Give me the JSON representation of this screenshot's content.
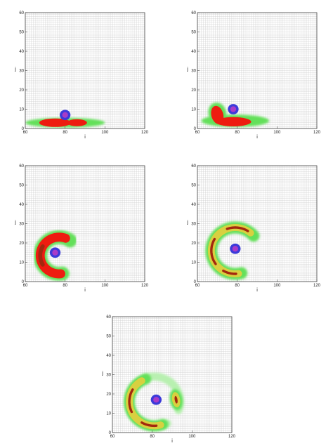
{
  "colors": {
    "grid": "#c8c8c8",
    "frame": "#444444",
    "fill_red": "#ee1c10",
    "fill_darkred": "#a3280e",
    "fill_yellow": "#d8d040",
    "fill_green": "#63e05a",
    "fill_lightgreen": "#b8f0b0",
    "marker_blue": "#3b3bd9",
    "marker_violet": "#a83cc8"
  },
  "chart_data": [
    {
      "type": "contour",
      "xlabel": "i",
      "ylabel": "j",
      "xlim": [
        60,
        120
      ],
      "ylim": [
        0,
        60
      ],
      "xticks": [
        "60",
        "80",
        "100",
        "120"
      ],
      "yticks": [
        "0",
        "10",
        "20",
        "30",
        "40",
        "50",
        "60"
      ],
      "marker_center": [
        80,
        7
      ],
      "marker_radius": 2.7,
      "features": [
        {
          "kind": "ellipse",
          "level": "green",
          "cx": 80,
          "cy": 3,
          "rx": 20,
          "ry": 2.5,
          "rot": 0
        },
        {
          "kind": "ellipse",
          "level": "red",
          "cx": 75,
          "cy": 3,
          "rx": 8,
          "ry": 2.2,
          "rot": 0
        },
        {
          "kind": "ellipse",
          "level": "red",
          "cx": 86,
          "cy": 3,
          "rx": 5,
          "ry": 1.8,
          "rot": 0
        }
      ]
    },
    {
      "type": "contour",
      "xlabel": "i",
      "ylabel": "j",
      "xlim": [
        60,
        120
      ],
      "ylim": [
        0,
        60
      ],
      "xticks": [
        "60",
        "80",
        "100",
        "120"
      ],
      "yticks": [
        "0",
        "10",
        "20",
        "30",
        "40",
        "50",
        "60"
      ],
      "marker_center": [
        78,
        10
      ],
      "marker_radius": 2.7,
      "features": [
        {
          "kind": "ellipse",
          "level": "green",
          "cx": 79,
          "cy": 4,
          "rx": 17,
          "ry": 3.2,
          "rot": 0
        },
        {
          "kind": "ellipse",
          "level": "green",
          "cx": 70,
          "cy": 8,
          "rx": 4.5,
          "ry": 5.5,
          "rot": 15
        },
        {
          "kind": "ellipse",
          "level": "red",
          "cx": 70,
          "cy": 7,
          "rx": 3,
          "ry": 4.8,
          "rot": 15
        },
        {
          "kind": "ellipse",
          "level": "red",
          "cx": 78,
          "cy": 3.5,
          "rx": 9,
          "ry": 2.4,
          "rot": 0
        }
      ]
    },
    {
      "type": "contour",
      "xlabel": "i",
      "ylabel": "j",
      "xlim": [
        60,
        120
      ],
      "ylim": [
        0,
        60
      ],
      "xticks": [
        "60",
        "80",
        "100",
        "120"
      ],
      "yticks": [
        "0",
        "10",
        "20",
        "30",
        "40",
        "50",
        "60"
      ],
      "marker_center": [
        75,
        15
      ],
      "marker_radius": 2.7,
      "features": [
        {
          "kind": "arc",
          "level": "green",
          "cx": 77,
          "cy": 13.5,
          "r": 9.5,
          "a0": 55,
          "a1": 280,
          "w": 7
        },
        {
          "kind": "arc",
          "level": "red",
          "cx": 77,
          "cy": 13.5,
          "r": 9.5,
          "a0": 70,
          "a1": 275,
          "w": 4.5
        },
        {
          "kind": "arc",
          "level": "darkred",
          "cx": 77,
          "cy": 13.5,
          "r": 9.5,
          "a0": 150,
          "a1": 210,
          "w": 2
        }
      ]
    },
    {
      "type": "contour",
      "xlabel": "i",
      "ylabel": "j",
      "xlim": [
        60,
        120
      ],
      "ylim": [
        0,
        60
      ],
      "xticks": [
        "60",
        "80",
        "100",
        "120"
      ],
      "yticks": [
        "0",
        "10",
        "20",
        "30",
        "40",
        "50",
        "60"
      ],
      "marker_center": [
        79,
        17
      ],
      "marker_radius": 2.7,
      "features": [
        {
          "kind": "arc",
          "level": "green",
          "cx": 79,
          "cy": 16,
          "r": 12,
          "a0": 40,
          "a1": 285,
          "w": 6
        },
        {
          "kind": "arc",
          "level": "yellow",
          "cx": 79,
          "cy": 16,
          "r": 12,
          "a0": 50,
          "a1": 278,
          "w": 3.5
        },
        {
          "kind": "arc",
          "level": "darkred",
          "cx": 79,
          "cy": 16,
          "r": 12,
          "a0": 58,
          "a1": 110,
          "w": 1.2
        },
        {
          "kind": "arc",
          "level": "darkred",
          "cx": 79,
          "cy": 16,
          "r": 12,
          "a0": 150,
          "a1": 215,
          "w": 1.2
        },
        {
          "kind": "arc",
          "level": "darkred",
          "cx": 79,
          "cy": 16,
          "r": 12,
          "a0": 240,
          "a1": 272,
          "w": 1.2
        }
      ]
    },
    {
      "type": "contour",
      "xlabel": "i",
      "ylabel": "j",
      "xlim": [
        60,
        120
      ],
      "ylim": [
        0,
        60
      ],
      "xticks": [
        "60",
        "80",
        "100",
        "120"
      ],
      "yticks": [
        "0",
        "10",
        "20",
        "30",
        "40",
        "50",
        "60"
      ],
      "marker_center": [
        82,
        17
      ],
      "marker_radius": 2.7,
      "features": [
        {
          "kind": "arc",
          "level": "lightgreen",
          "cx": 81,
          "cy": 16,
          "r": 13,
          "a0": -20,
          "a1": 300,
          "w": 4
        },
        {
          "kind": "arc",
          "level": "green",
          "cx": 81,
          "cy": 16,
          "r": 12.5,
          "a0": 110,
          "a1": 290,
          "w": 5.5
        },
        {
          "kind": "arc",
          "level": "yellow",
          "cx": 81,
          "cy": 16,
          "r": 12.5,
          "a0": 120,
          "a1": 285,
          "w": 3.5
        },
        {
          "kind": "arc",
          "level": "darkred",
          "cx": 81,
          "cy": 16,
          "r": 12.5,
          "a0": 150,
          "a1": 205,
          "w": 1.2
        },
        {
          "kind": "arc",
          "level": "darkred",
          "cx": 81,
          "cy": 16,
          "r": 12.5,
          "a0": 240,
          "a1": 275,
          "w": 1.2
        },
        {
          "kind": "ellipse",
          "level": "green",
          "cx": 92,
          "cy": 17,
          "rx": 3.2,
          "ry": 5.5,
          "rot": 10
        },
        {
          "kind": "ellipse",
          "level": "yellow",
          "cx": 92,
          "cy": 17,
          "rx": 2,
          "ry": 4,
          "rot": 10
        },
        {
          "kind": "ellipse",
          "level": "darkred",
          "cx": 92,
          "cy": 17,
          "rx": 0.7,
          "ry": 2,
          "rot": 10
        }
      ]
    }
  ]
}
